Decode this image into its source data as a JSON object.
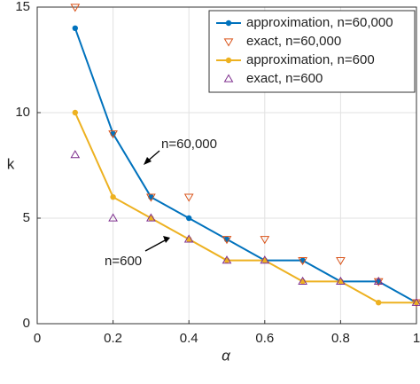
{
  "chart_data": {
    "type": "line",
    "x": [
      0.1,
      0.2,
      0.3,
      0.4,
      0.5,
      0.6,
      0.7,
      0.8,
      0.9,
      1.0
    ],
    "series": [
      {
        "name": "approximation, n=60,000",
        "color": "#0072BD",
        "marker": "circle",
        "line": true,
        "values": [
          14,
          9,
          6,
          5,
          4,
          3,
          3,
          2,
          2,
          1
        ]
      },
      {
        "name": "exact, n=60,000",
        "color": "#D95319",
        "marker": "triangle-down",
        "line": false,
        "values": [
          15,
          9,
          6,
          6,
          4,
          4,
          3,
          3,
          2,
          1
        ]
      },
      {
        "name": "approximation, n=600",
        "color": "#EDB120",
        "marker": "circle",
        "line": true,
        "values": [
          10,
          6,
          5,
          4,
          3,
          3,
          2,
          2,
          1,
          1
        ]
      },
      {
        "name": "exact, n=600",
        "color": "#7E2F8E",
        "marker": "triangle-up",
        "line": false,
        "values": [
          8,
          5,
          5,
          4,
          3,
          3,
          2,
          2,
          2,
          1
        ]
      }
    ],
    "xlim": [
      0,
      1
    ],
    "xticks": [
      0,
      0.2,
      0.4,
      0.6,
      0.8,
      1
    ],
    "ylim": [
      0,
      15
    ],
    "yticks": [
      0,
      5,
      10,
      15
    ],
    "xlabel": "α",
    "ylabel": "k",
    "annotations": [
      "n=60,000",
      "n=600"
    ],
    "grid": true,
    "legend": "upper right"
  }
}
